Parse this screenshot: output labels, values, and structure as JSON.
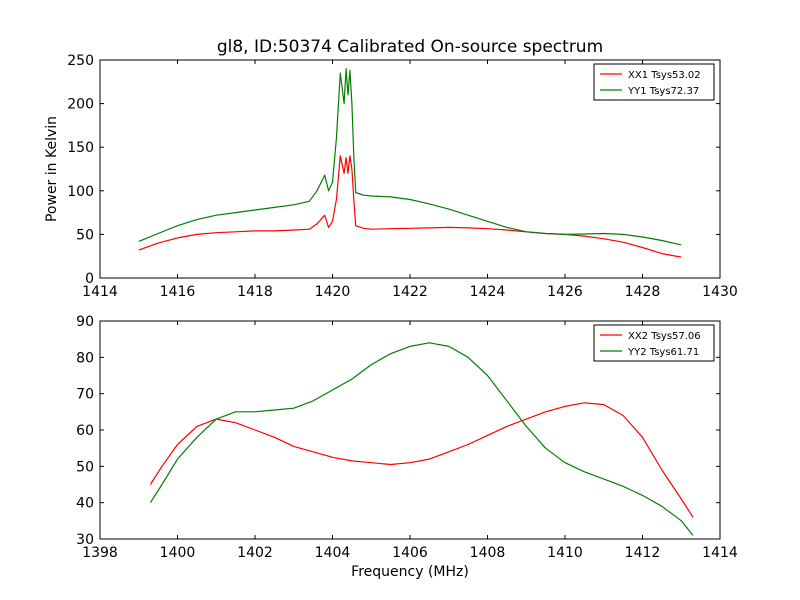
{
  "chart_data": [
    {
      "type": "line",
      "title": "gl8, ID:50374 Calibrated On-source spectrum",
      "xlabel": "",
      "ylabel": "Power in Kelvin",
      "xlim": [
        1414,
        1430
      ],
      "ylim": [
        0,
        250
      ],
      "xticks": [
        "1414",
        "1416",
        "1418",
        "1420",
        "1422",
        "1424",
        "1426",
        "1428",
        "1430"
      ],
      "yticks": [
        "0",
        "50",
        "100",
        "150",
        "200",
        "250"
      ],
      "grid": false,
      "legend_position": "top-right",
      "series": [
        {
          "name": "XX1 Tsys53.02",
          "color": "#ff0000",
          "x": [
            1415.0,
            1415.5,
            1416.0,
            1416.5,
            1417.0,
            1417.5,
            1418.0,
            1418.5,
            1419.0,
            1419.4,
            1419.6,
            1419.8,
            1419.9,
            1420.0,
            1420.1,
            1420.2,
            1420.3,
            1420.35,
            1420.4,
            1420.45,
            1420.5,
            1420.55,
            1420.6,
            1420.8,
            1421.0,
            1421.5,
            1422.0,
            1422.5,
            1423.0,
            1423.5,
            1424.0,
            1424.5,
            1425.0,
            1425.5,
            1426.0,
            1426.5,
            1427.0,
            1427.5,
            1428.0,
            1428.5,
            1429.0
          ],
          "values": [
            32,
            40,
            46,
            50,
            52,
            53,
            54,
            54,
            55,
            56,
            62,
            72,
            58,
            65,
            90,
            140,
            120,
            138,
            120,
            140,
            125,
            90,
            60,
            57,
            56,
            56.5,
            57,
            57.5,
            58,
            57.5,
            56.5,
            55,
            53,
            51,
            50,
            48,
            45,
            41,
            35,
            28,
            24
          ]
        },
        {
          "name": "YY1 Tsys72.37",
          "color": "#008000",
          "x": [
            1415.0,
            1415.5,
            1416.0,
            1416.5,
            1417.0,
            1417.5,
            1418.0,
            1418.5,
            1419.0,
            1419.4,
            1419.6,
            1419.8,
            1419.9,
            1420.0,
            1420.1,
            1420.2,
            1420.3,
            1420.35,
            1420.4,
            1420.45,
            1420.5,
            1420.55,
            1420.6,
            1420.8,
            1421.0,
            1421.5,
            1422.0,
            1422.5,
            1423.0,
            1423.5,
            1424.0,
            1424.5,
            1425.0,
            1425.5,
            1426.0,
            1426.5,
            1427.0,
            1427.5,
            1428.0,
            1428.5,
            1429.0
          ],
          "values": [
            42,
            51,
            60,
            67,
            72,
            75,
            78,
            81,
            84,
            88,
            100,
            118,
            100,
            110,
            160,
            235,
            200,
            240,
            210,
            238,
            200,
            140,
            98,
            95,
            94,
            93,
            90,
            85,
            79,
            72,
            65,
            58,
            53,
            51,
            50,
            50.5,
            51,
            50,
            47,
            43,
            38
          ]
        }
      ]
    },
    {
      "type": "line",
      "title": "",
      "xlabel": "Frequency (MHz)",
      "ylabel": "",
      "xlim": [
        1398,
        1414
      ],
      "ylim": [
        30,
        90
      ],
      "xticks": [
        "1398",
        "1400",
        "1402",
        "1404",
        "1406",
        "1408",
        "1410",
        "1412",
        "1414"
      ],
      "yticks": [
        "30",
        "40",
        "50",
        "60",
        "70",
        "80",
        "90"
      ],
      "grid": false,
      "legend_position": "top-right",
      "series": [
        {
          "name": "XX2 Tsys57.06",
          "color": "#ff0000",
          "x": [
            1399.3,
            1399.6,
            1400.0,
            1400.5,
            1401.0,
            1401.5,
            1402.0,
            1402.5,
            1403.0,
            1403.5,
            1404.0,
            1404.5,
            1405.0,
            1405.5,
            1406.0,
            1406.5,
            1407.0,
            1407.5,
            1408.0,
            1408.5,
            1409.0,
            1409.5,
            1410.0,
            1410.5,
            1411.0,
            1411.5,
            1412.0,
            1412.5,
            1413.0,
            1413.3
          ],
          "values": [
            45,
            50,
            56,
            61,
            63,
            62,
            60,
            58,
            55.5,
            54,
            52.5,
            51.5,
            51,
            50.5,
            51,
            52,
            54,
            56,
            58.5,
            61,
            63,
            65,
            66.5,
            67.5,
            67,
            64,
            58,
            49,
            41,
            36
          ]
        },
        {
          "name": "YY2 Tsys61.71",
          "color": "#008000",
          "x": [
            1399.3,
            1399.6,
            1400.0,
            1400.5,
            1401.0,
            1401.5,
            1402.0,
            1402.5,
            1403.0,
            1403.5,
            1404.0,
            1404.5,
            1405.0,
            1405.5,
            1406.0,
            1406.5,
            1407.0,
            1407.5,
            1408.0,
            1408.5,
            1409.0,
            1409.5,
            1410.0,
            1410.5,
            1411.0,
            1411.5,
            1412.0,
            1412.5,
            1413.0,
            1413.3
          ],
          "values": [
            40,
            45,
            52,
            58,
            63,
            65,
            65,
            65.5,
            66,
            68,
            71,
            74,
            78,
            81,
            83,
            84,
            83,
            80,
            75,
            68,
            61,
            55,
            51,
            48.5,
            46.5,
            44.5,
            42,
            39,
            35,
            31
          ]
        }
      ]
    }
  ]
}
